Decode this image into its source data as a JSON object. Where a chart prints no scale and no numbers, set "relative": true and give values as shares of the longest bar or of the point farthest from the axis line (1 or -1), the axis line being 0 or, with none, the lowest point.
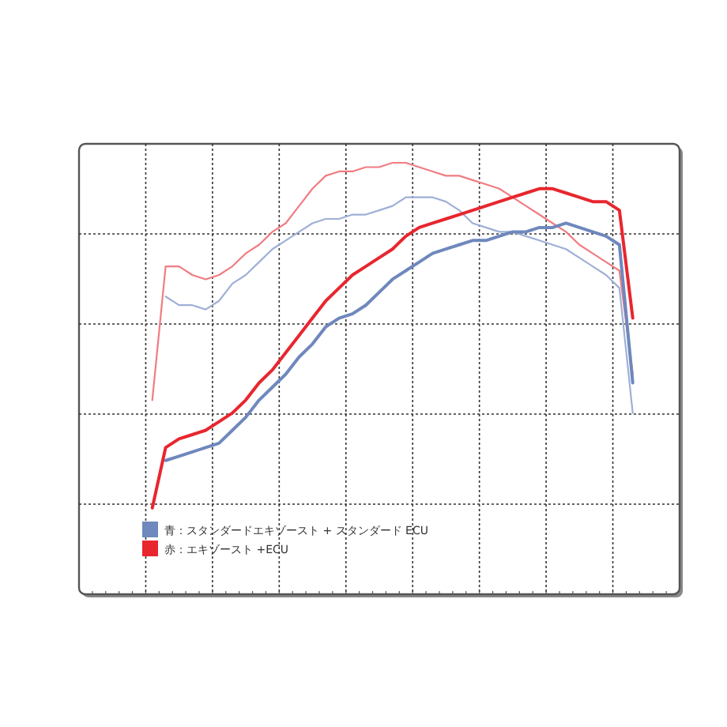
{
  "chart_data": {
    "type": "line",
    "relative": true,
    "grid": true,
    "legend": "bottom left",
    "line_style": "solid",
    "marker": "none",
    "categories": [
      null,
      null,
      null,
      null,
      null,
      null,
      null,
      null,
      null,
      null,
      null,
      null,
      null,
      null,
      null,
      null,
      null,
      null,
      null,
      null,
      null,
      null,
      null,
      null,
      null,
      null,
      null,
      null,
      null,
      null,
      null,
      null,
      null,
      null,
      null,
      null,
      null
    ],
    "series": [
      {
        "color": "#f07c82",
        "values": [
          0.45,
          0.76,
          0.76,
          0.74,
          0.73,
          0.74,
          0.76,
          0.79,
          0.81,
          0.84,
          0.86,
          0.9,
          0.94,
          0.97,
          0.98,
          0.98,
          0.99,
          0.99,
          1,
          1,
          0.99,
          0.98,
          0.97,
          0.97,
          0.96,
          0.95,
          0.94,
          0.92,
          0.9,
          0.88,
          0.86,
          0.84,
          0.81,
          0.79,
          0.77,
          0.75,
          0.51
        ]
      },
      {
        "color": "#9fb0d6",
        "values": [
          null,
          0.69,
          0.67,
          0.67,
          0.66,
          0.68,
          0.72,
          0.74,
          0.77,
          0.8,
          0.82,
          0.84,
          0.86,
          0.87,
          0.87,
          0.88,
          0.88,
          0.89,
          0.9,
          0.92,
          0.92,
          0.92,
          0.91,
          0.89,
          0.86,
          0.85,
          0.84,
          0.84,
          0.83,
          0.82,
          0.81,
          0.8,
          0.78,
          0.76,
          0.74,
          0.71,
          0.42
        ]
      },
      {
        "name": "青：スタンダードエキゾースト + スタンダード ECU",
        "color": "#6f88bd",
        "values": [
          null,
          0.31,
          0.32,
          0.33,
          0.34,
          0.35,
          0.38,
          0.41,
          0.45,
          0.48,
          0.51,
          0.55,
          0.58,
          0.62,
          0.64,
          0.65,
          0.67,
          0.7,
          0.73,
          0.75,
          0.77,
          0.79,
          0.8,
          0.81,
          0.82,
          0.82,
          0.83,
          0.84,
          0.84,
          0.85,
          0.85,
          0.86,
          0.85,
          0.84,
          0.83,
          0.81,
          0.49
        ]
      },
      {
        "name": "赤：エキゾースト +ECU",
        "color": "#e8262e",
        "values": [
          0.2,
          0.34,
          0.36,
          0.37,
          0.38,
          0.4,
          0.42,
          0.45,
          0.49,
          0.52,
          0.56,
          0.6,
          0.64,
          0.68,
          0.71,
          0.74,
          0.76,
          0.78,
          0.8,
          0.83,
          0.85,
          0.86,
          0.87,
          0.88,
          0.89,
          0.9,
          0.91,
          0.92,
          0.93,
          0.94,
          0.94,
          0.93,
          0.92,
          0.91,
          0.91,
          0.89,
          0.64
        ]
      }
    ]
  }
}
